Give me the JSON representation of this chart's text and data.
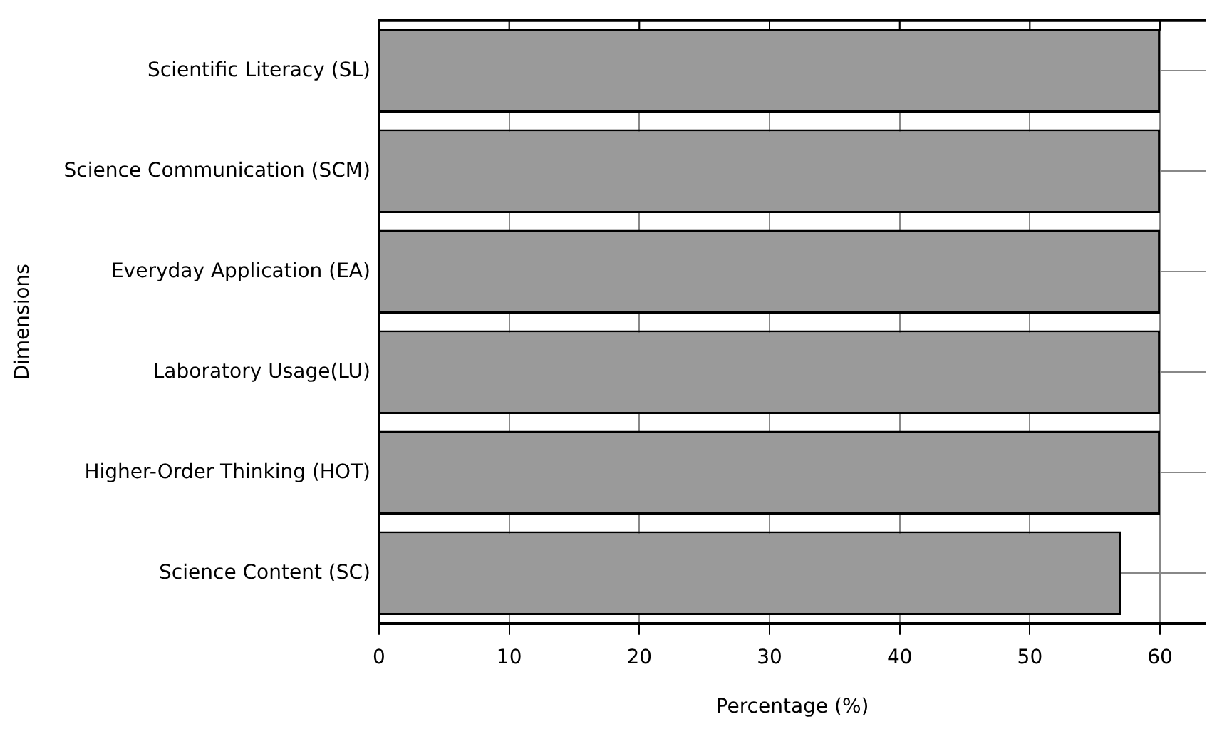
{
  "chart_data": {
    "type": "bar",
    "orientation": "horizontal",
    "xlabel": "Percentage (%)",
    "ylabel": "Dimensions",
    "categories": [
      "Scientific Literacy (SL)",
      "Science Communication (SCM)",
      "Everyday Application (EA)",
      "Laboratory Usage(LU)",
      "Higher-Order Thinking (HOT)",
      "Science Content (SC)"
    ],
    "values": [
      60,
      60,
      60,
      60,
      60,
      57
    ],
    "color": "#9a9a9a",
    "xlim": [
      0,
      63.5
    ],
    "xticks": [
      0,
      10,
      20,
      30,
      40,
      50,
      60
    ],
    "grid": true,
    "legend": false
  }
}
